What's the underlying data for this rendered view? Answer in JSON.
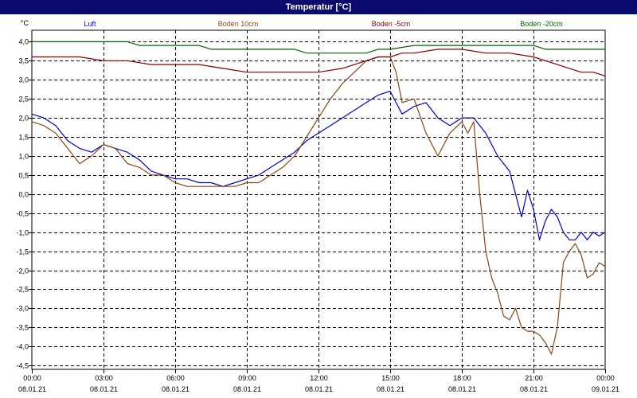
{
  "window": {
    "title": "Temperatur [°C]"
  },
  "colors": {
    "titlebar": "#0a0a6e",
    "background": "#ffffff",
    "grid": "#000000"
  },
  "chart_data": {
    "type": "line",
    "title": "Temperatur [°C]",
    "ylabel": "°C",
    "xlabel": "",
    "ylim": [
      -4.6,
      4.3
    ],
    "xlim": [
      0,
      24
    ],
    "y_ticks": [
      "4,0",
      "3,5",
      "3,0",
      "2,5",
      "2,0",
      "1,5",
      "1,0",
      "0,5",
      "0,0",
      "-0,5",
      "-1,0",
      "-1,5",
      "-2,0",
      "-2,5",
      "-3,0",
      "-3,5",
      "-4,0",
      "-4,5"
    ],
    "y_tick_values": [
      4.0,
      3.5,
      3.0,
      2.5,
      2.0,
      1.5,
      1.0,
      0.5,
      0.0,
      -0.5,
      -1.0,
      -1.5,
      -2.0,
      -2.5,
      -3.0,
      -3.5,
      -4.0,
      -4.5
    ],
    "x_ticks": [
      {
        "time": "00:00",
        "date": "08.01.21",
        "h": 0
      },
      {
        "time": "03:00",
        "date": "08.01.21",
        "h": 3
      },
      {
        "time": "06:00",
        "date": "08.01.21",
        "h": 6
      },
      {
        "time": "09:00",
        "date": "08.01.21",
        "h": 9
      },
      {
        "time": "12:00",
        "date": "08.01.21",
        "h": 12
      },
      {
        "time": "15:00",
        "date": "08.01.21",
        "h": 15
      },
      {
        "time": "18:00",
        "date": "08.01.21",
        "h": 18
      },
      {
        "time": "21:00",
        "date": "08.01.21",
        "h": 21
      },
      {
        "time": "00:00",
        "date": "09.01.21",
        "h": 24
      }
    ],
    "grid": true,
    "legend_placement": "top",
    "series": [
      {
        "name": "Luft",
        "color": "#0000cc",
        "x": [
          0,
          0.5,
          1,
          1.5,
          2,
          2.5,
          3,
          3.5,
          4,
          4.5,
          5,
          5.5,
          6,
          6.5,
          7,
          7.5,
          8,
          8.5,
          9,
          9.5,
          10,
          10.5,
          11,
          11.5,
          12,
          12.5,
          13,
          13.5,
          14,
          14.5,
          15,
          15.5,
          16,
          16.5,
          17,
          17.5,
          18,
          18.5,
          19,
          19.5,
          20,
          20.25,
          20.5,
          20.75,
          21,
          21.25,
          21.5,
          21.75,
          22,
          22.25,
          22.5,
          22.75,
          23,
          23.25,
          23.5,
          23.75,
          24
        ],
        "y": [
          2.1,
          2.0,
          1.8,
          1.4,
          1.2,
          1.1,
          1.3,
          1.2,
          1.1,
          0.9,
          0.6,
          0.5,
          0.4,
          0.4,
          0.3,
          0.3,
          0.2,
          0.3,
          0.4,
          0.5,
          0.7,
          0.9,
          1.1,
          1.4,
          1.6,
          1.8,
          2.0,
          2.2,
          2.4,
          2.6,
          2.7,
          2.1,
          2.3,
          2.4,
          2.0,
          1.8,
          2.0,
          2.0,
          1.6,
          1.0,
          0.6,
          0.0,
          -0.6,
          0.1,
          -0.4,
          -1.2,
          -0.7,
          -0.4,
          -0.6,
          -1.0,
          -1.2,
          -1.2,
          -1.0,
          -1.2,
          -1.0,
          -1.1,
          -1.0
        ]
      },
      {
        "name": "Boden 10cm",
        "color": "#8b4513",
        "x": [
          0,
          0.5,
          1,
          1.5,
          2,
          2.5,
          3,
          3.5,
          4,
          4.5,
          5,
          5.5,
          6,
          6.5,
          7,
          7.5,
          8,
          8.5,
          9,
          9.5,
          10,
          10.5,
          11,
          11.5,
          12,
          12.5,
          13,
          13.5,
          14,
          14.5,
          15,
          15.25,
          15.5,
          16,
          16.5,
          17,
          17.5,
          18,
          18.25,
          18.5,
          18.75,
          19,
          19.25,
          19.5,
          19.75,
          20,
          20.25,
          20.5,
          20.75,
          21,
          21.25,
          21.5,
          21.75,
          22,
          22.25,
          22.5,
          22.75,
          23,
          23.25,
          23.5,
          23.75,
          24
        ],
        "y": [
          1.9,
          1.8,
          1.6,
          1.2,
          0.8,
          1.0,
          1.3,
          1.2,
          0.8,
          0.7,
          0.5,
          0.5,
          0.3,
          0.2,
          0.2,
          0.2,
          0.2,
          0.2,
          0.3,
          0.3,
          0.5,
          0.7,
          1.0,
          1.5,
          2.0,
          2.5,
          2.9,
          3.2,
          3.5,
          3.6,
          3.6,
          3.2,
          2.4,
          2.5,
          1.6,
          1.0,
          1.6,
          1.9,
          1.6,
          1.9,
          0.0,
          -1.5,
          -2.2,
          -2.6,
          -3.2,
          -3.3,
          -3.0,
          -3.5,
          -3.6,
          -3.6,
          -3.7,
          -3.9,
          -4.2,
          -3.5,
          -1.8,
          -1.5,
          -1.3,
          -1.6,
          -2.2,
          -2.1,
          -1.8,
          -1.9
        ]
      },
      {
        "name": "Boden -5cm",
        "color": "#800000",
        "x": [
          0,
          1,
          2,
          3,
          4,
          5,
          6,
          7,
          8,
          9,
          10,
          11,
          12,
          13,
          14,
          14.5,
          15,
          15.5,
          16,
          17,
          18,
          19,
          20,
          21,
          21.5,
          22,
          22.5,
          23,
          23.5,
          24
        ],
        "y": [
          3.6,
          3.6,
          3.6,
          3.5,
          3.5,
          3.4,
          3.4,
          3.4,
          3.3,
          3.2,
          3.2,
          3.2,
          3.2,
          3.3,
          3.5,
          3.6,
          3.6,
          3.7,
          3.7,
          3.8,
          3.8,
          3.7,
          3.7,
          3.6,
          3.5,
          3.4,
          3.3,
          3.2,
          3.2,
          3.1
        ]
      },
      {
        "name": "Boden -20cm",
        "color": "#006400",
        "x": [
          0,
          1,
          2,
          3,
          4,
          4.5,
          5,
          6,
          7,
          7.5,
          8,
          9,
          10,
          11,
          11.5,
          12,
          13,
          14,
          14.5,
          15,
          16,
          17,
          18,
          19,
          20,
          21,
          21.5,
          22,
          23,
          23.3,
          24
        ],
        "y": [
          4.0,
          4.0,
          4.0,
          4.0,
          4.0,
          3.9,
          3.9,
          3.9,
          3.9,
          3.8,
          3.8,
          3.8,
          3.8,
          3.8,
          3.7,
          3.7,
          3.7,
          3.7,
          3.8,
          3.8,
          3.9,
          3.9,
          3.9,
          3.9,
          3.9,
          3.9,
          3.8,
          3.8,
          3.8,
          3.8,
          3.8
        ]
      }
    ]
  }
}
